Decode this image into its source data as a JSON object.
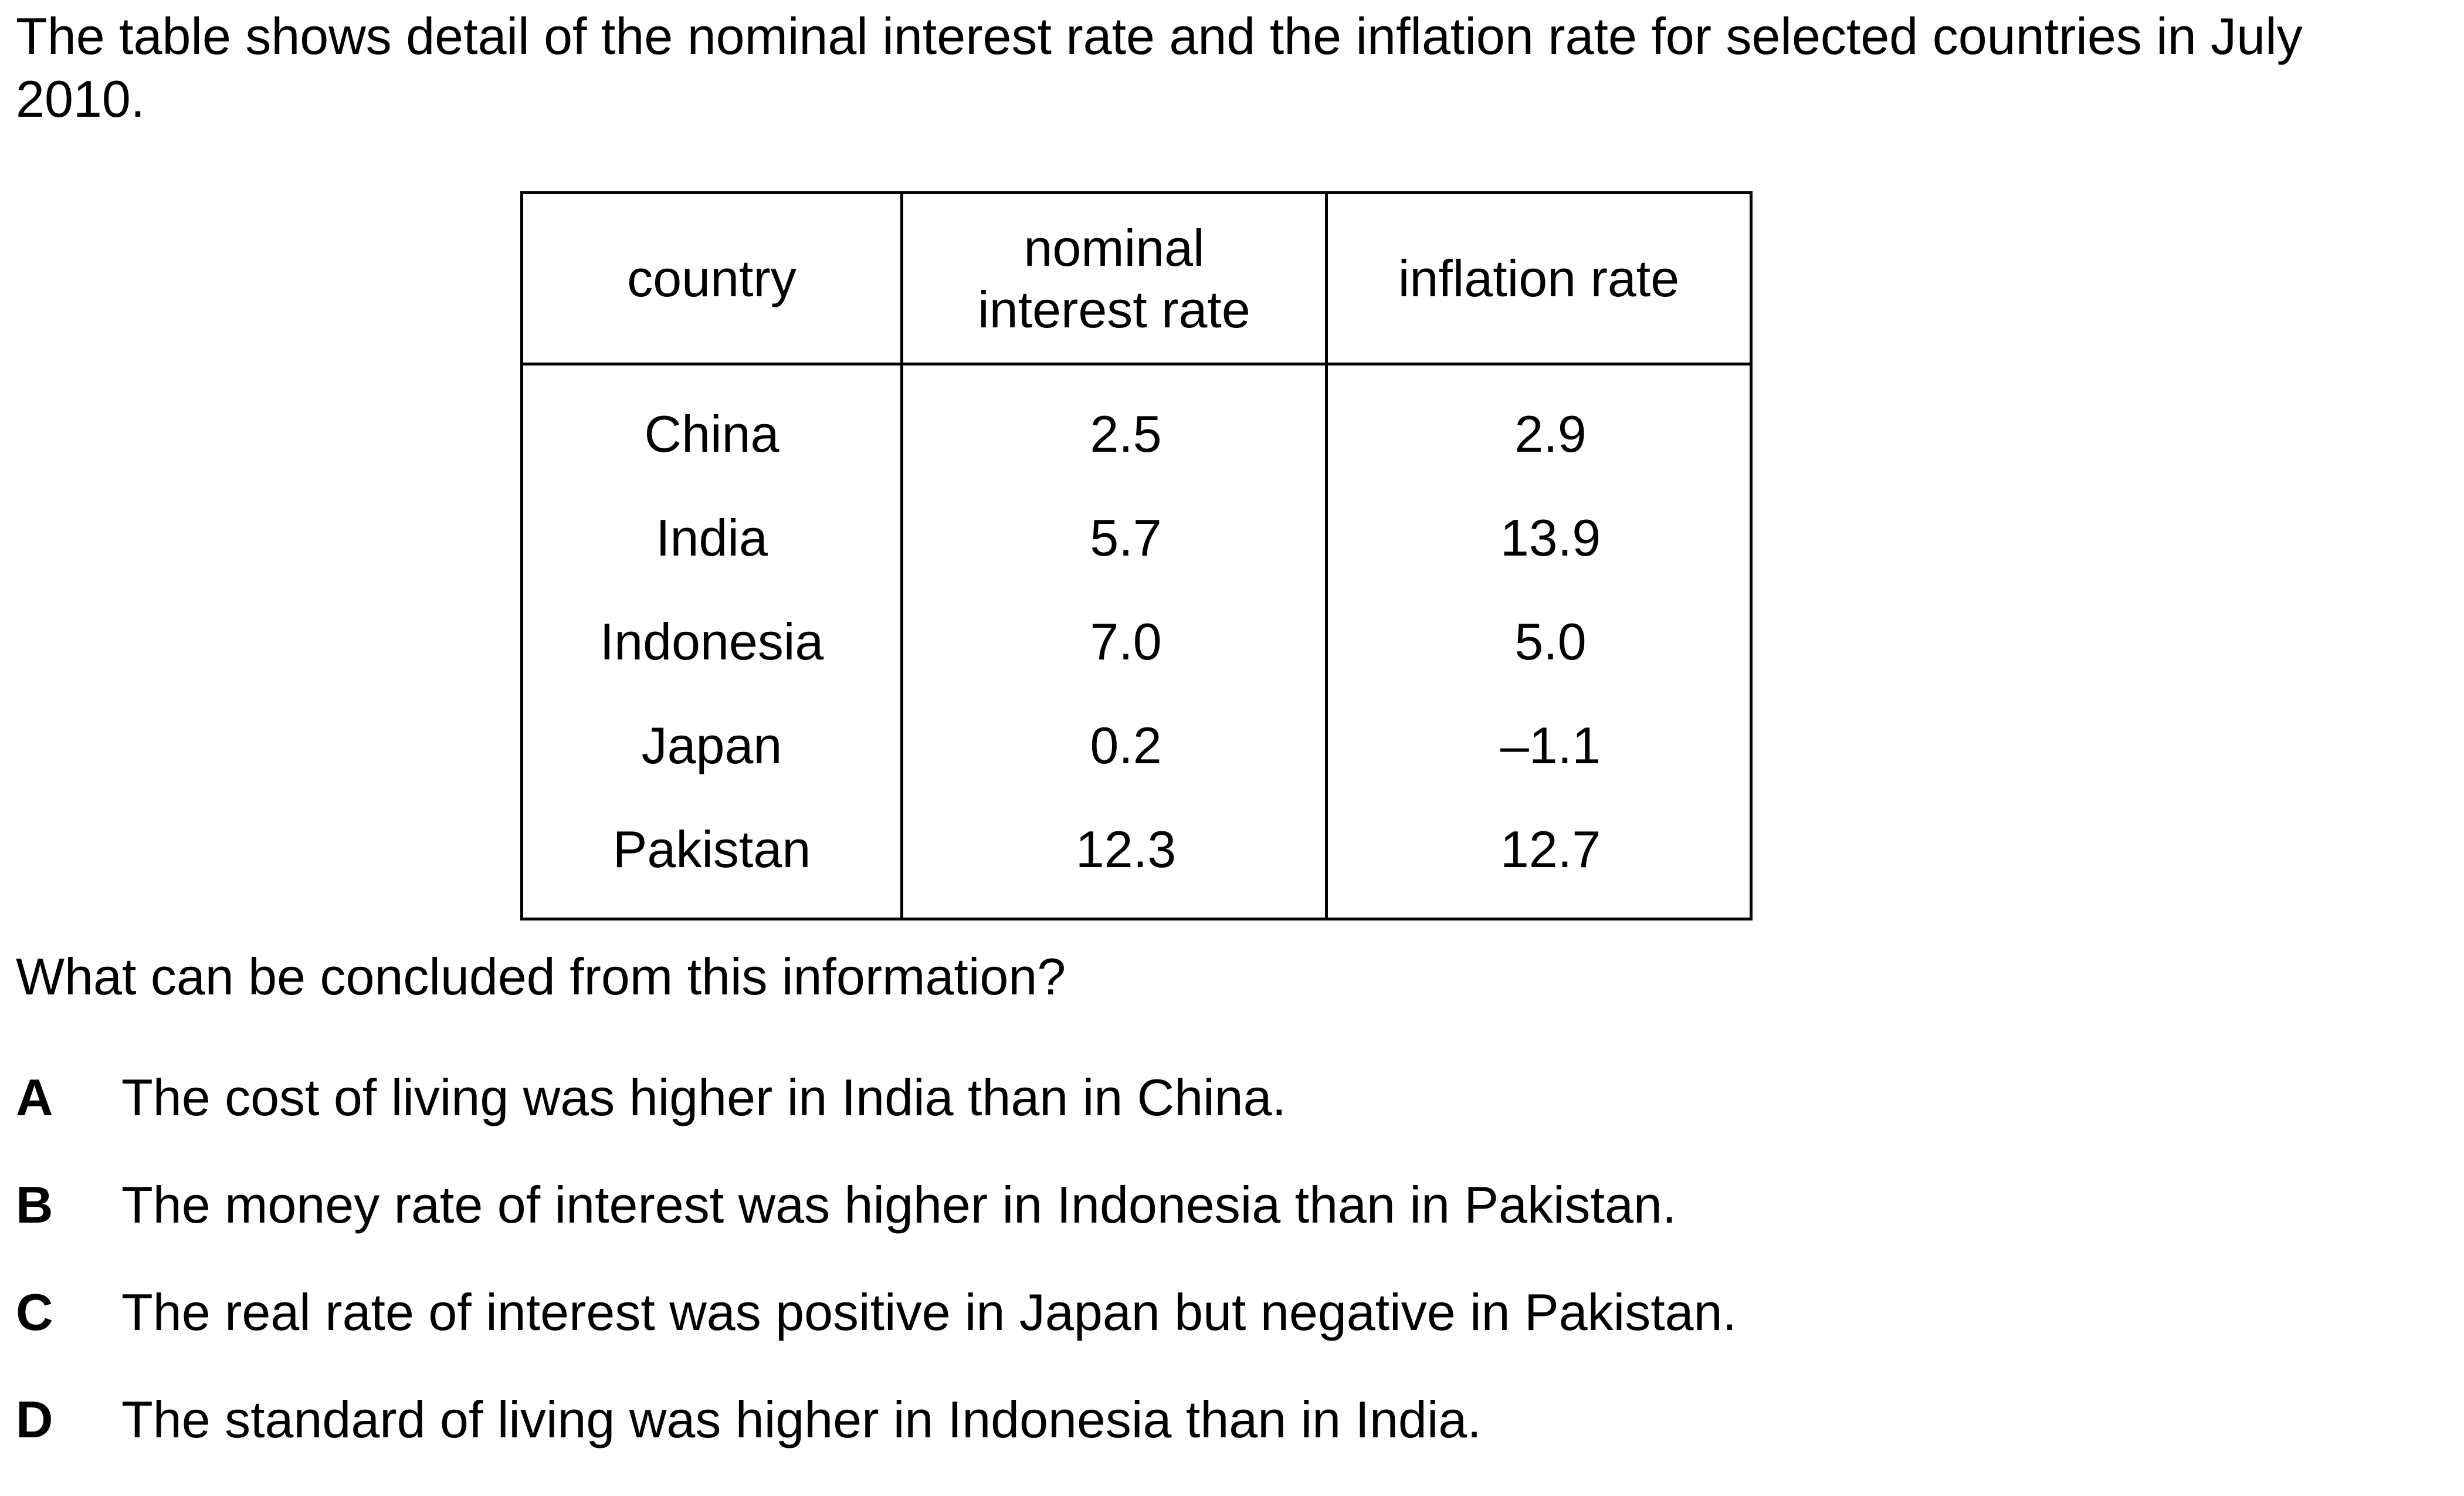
{
  "intro": "The table shows detail of the nominal interest rate and the inflation rate for selected countries in July 2010.",
  "table": {
    "headers": {
      "country": "country",
      "nominal_line1": "nominal",
      "nominal_line2": "interest rate",
      "inflation": "inflation rate"
    },
    "rows": [
      {
        "country": "China",
        "nominal": "2.5",
        "inflation": "2.9"
      },
      {
        "country": "India",
        "nominal": "5.7",
        "inflation": "13.9"
      },
      {
        "country": "Indonesia",
        "nominal": "7.0",
        "inflation": "5.0"
      },
      {
        "country": "Japan",
        "nominal": "0.2",
        "inflation": "–1.1"
      },
      {
        "country": "Pakistan",
        "nominal": "12.3",
        "inflation": "12.7"
      }
    ]
  },
  "question": "What can be concluded from this information?",
  "options": [
    {
      "letter": "A",
      "text": "The cost of living was higher in India than in China."
    },
    {
      "letter": "B",
      "text": "The money rate of interest was higher in Indonesia than in Pakistan."
    },
    {
      "letter": "C",
      "text": "The real rate of interest was positive in Japan but negative in Pakistan."
    },
    {
      "letter": "D",
      "text": "The standard of living was higher in Indonesia than in India."
    }
  ]
}
